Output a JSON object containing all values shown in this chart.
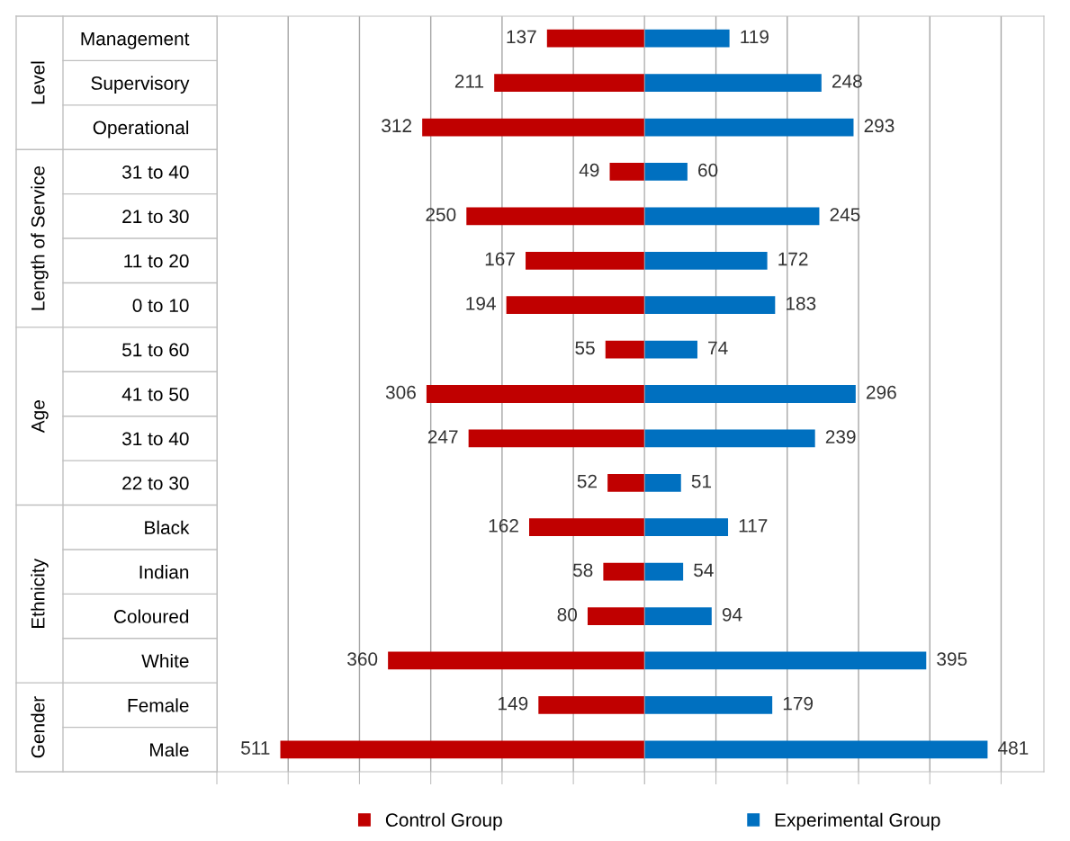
{
  "chart_data": [
    {
      "type": "bar",
      "orientation": "horizontal",
      "categories": [
        "Management",
        "Supervisory",
        "Operational",
        "31 to 40",
        "21 to 30",
        "11 to 20",
        "0 to 10",
        "51 to 60",
        "41 to 50",
        "31 to 40",
        "22 to 30",
        "Black",
        "Indian",
        "Coloured",
        "White",
        "Female",
        "Male"
      ],
      "series": [
        {
          "name": "Control Group",
          "color": "#c00000",
          "values": [
            137,
            211,
            312,
            49,
            250,
            167,
            194,
            55,
            306,
            247,
            52,
            162,
            58,
            80,
            360,
            149,
            511
          ]
        }
      ],
      "data_labels": true,
      "annotations": [
        "Level",
        "Length of Service",
        "Age",
        "Ethnicity",
        "Gender"
      ],
      "xlim": [
        600,
        0
      ],
      "xticks": [
        {
          "value": 600,
          "label": null
        },
        {
          "value": 500,
          "label": null
        },
        {
          "value": 400,
          "label": null
        },
        {
          "value": 300,
          "label": null
        },
        {
          "value": 200,
          "label": null
        },
        {
          "value": 100,
          "label": null
        },
        {
          "value": 0,
          "label": null
        }
      ],
      "grid": "x",
      "legend": "bottom",
      "tick_labels": "y"
    },
    {
      "type": "bar",
      "orientation": "horizontal",
      "categories": [
        null,
        null,
        null,
        null,
        null,
        null,
        null,
        null,
        null,
        null,
        null,
        null,
        null,
        null,
        null,
        null,
        null
      ],
      "series": [
        {
          "name": "Experimental Group",
          "color": "#0070c0",
          "values": [
            119,
            248,
            293,
            60,
            245,
            172,
            183,
            74,
            296,
            239,
            51,
            117,
            54,
            94,
            395,
            179,
            481
          ]
        }
      ],
      "data_labels": true,
      "xlim": [
        0,
        560
      ],
      "xticks": [
        {
          "value": 0,
          "label": null
        },
        {
          "value": 100,
          "label": null
        },
        {
          "value": 200,
          "label": null
        },
        {
          "value": 300,
          "label": null
        },
        {
          "value": 400,
          "label": null
        },
        {
          "value": 500,
          "label": null
        }
      ],
      "grid": "x",
      "legend": "bottom"
    }
  ]
}
